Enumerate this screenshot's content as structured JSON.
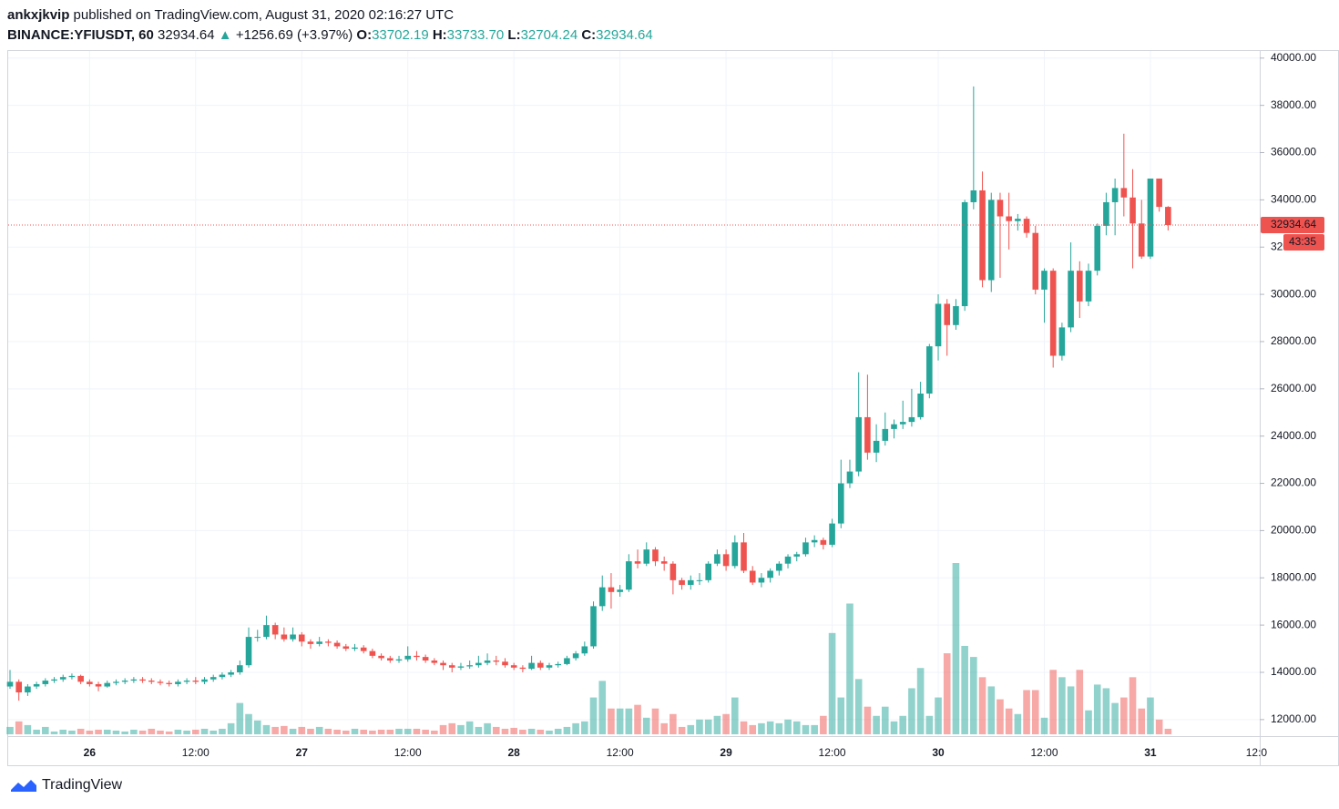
{
  "header": {
    "user": "ankxjkvip",
    "published": "published on TradingView.com, August 31, 2020 02:16:27 UTC",
    "symbol": "BINANCE:YFIUSDT, 60",
    "last": "32934.64",
    "arrow": "▲",
    "change": "+1256.69 (+3.97%)",
    "o_label": "O:",
    "o": "33702.19",
    "h_label": "H:",
    "h": "33733.70",
    "l_label": "L:",
    "l": "32704.24",
    "c_label": "C:",
    "c": "32934.64"
  },
  "footer": {
    "brand": "TradingView"
  },
  "chart_data": {
    "type": "candlestick",
    "up_color": "#26a69a",
    "down_color": "#ef5350",
    "grid": true,
    "countdown": "43:35",
    "xtick_cut": "12:0",
    "ylim": [
      11300,
      40300
    ],
    "yticks": [
      {
        "value": 12000,
        "label": "12000.00"
      },
      {
        "value": 14000,
        "label": "14000.00"
      },
      {
        "value": 16000,
        "label": "16000.00"
      },
      {
        "value": 18000,
        "label": "18000.00"
      },
      {
        "value": 20000,
        "label": "20000.00"
      },
      {
        "value": 22000,
        "label": "22000.00"
      },
      {
        "value": 24000,
        "label": "24000.00"
      },
      {
        "value": 26000,
        "label": "26000.00"
      },
      {
        "value": 28000,
        "label": "28000.00"
      },
      {
        "value": 30000,
        "label": "30000.00"
      },
      {
        "value": 32000,
        "label": "32000.00"
      },
      {
        "value": 34000,
        "label": "34000.00"
      },
      {
        "value": 36000,
        "label": "36000.00"
      },
      {
        "value": 38000,
        "label": "38000.00"
      },
      {
        "value": 40000,
        "label": "40000.00"
      }
    ],
    "categories": [
      null,
      null,
      null,
      null,
      null,
      null,
      null,
      null,
      null,
      "26",
      null,
      null,
      null,
      null,
      null,
      null,
      null,
      null,
      null,
      null,
      null,
      "12:00",
      null,
      null,
      null,
      null,
      null,
      null,
      null,
      null,
      null,
      null,
      null,
      "27",
      null,
      null,
      null,
      null,
      null,
      null,
      null,
      null,
      null,
      null,
      null,
      "12:00",
      null,
      null,
      null,
      null,
      null,
      null,
      null,
      null,
      null,
      null,
      null,
      "28",
      null,
      null,
      null,
      null,
      null,
      null,
      null,
      null,
      null,
      null,
      null,
      "12:00",
      null,
      null,
      null,
      null,
      null,
      null,
      null,
      null,
      null,
      null,
      null,
      "29",
      null,
      null,
      null,
      null,
      null,
      null,
      null,
      null,
      null,
      null,
      null,
      "12:00",
      null,
      null,
      null,
      null,
      null,
      null,
      null,
      null,
      null,
      null,
      null,
      "30",
      null,
      null,
      null,
      null,
      null,
      null,
      null,
      null,
      null,
      null,
      null,
      "12:00",
      null,
      null,
      null,
      null,
      null,
      null,
      null,
      null,
      null,
      null,
      null,
      "31",
      null,
      null
    ],
    "ohlc": [
      [
        13400,
        14100,
        13300,
        13600
      ],
      [
        13600,
        13700,
        12800,
        13150
      ],
      [
        13150,
        13500,
        13000,
        13400
      ],
      [
        13400,
        13600,
        13300,
        13500
      ],
      [
        13500,
        13750,
        13400,
        13650
      ],
      [
        13650,
        13800,
        13550,
        13700
      ],
      [
        13700,
        13900,
        13600,
        13800
      ],
      [
        13800,
        13950,
        13700,
        13850
      ],
      [
        13850,
        13900,
        13500,
        13600
      ],
      [
        13600,
        13700,
        13400,
        13500
      ],
      [
        13500,
        13600,
        13200,
        13400
      ],
      [
        13400,
        13650,
        13350,
        13550
      ],
      [
        13550,
        13700,
        13450,
        13600
      ],
      [
        13600,
        13750,
        13500,
        13650
      ],
      [
        13650,
        13800,
        13550,
        13700
      ],
      [
        13700,
        13800,
        13550,
        13650
      ],
      [
        13650,
        13750,
        13500,
        13600
      ],
      [
        13600,
        13700,
        13450,
        13550
      ],
      [
        13550,
        13650,
        13400,
        13500
      ],
      [
        13500,
        13700,
        13400,
        13600
      ],
      [
        13600,
        13750,
        13500,
        13650
      ],
      [
        13650,
        13800,
        13500,
        13600
      ],
      [
        13600,
        13800,
        13500,
        13700
      ],
      [
        13700,
        13900,
        13600,
        13800
      ],
      [
        13800,
        14000,
        13700,
        13900
      ],
      [
        13900,
        14100,
        13800,
        14000
      ],
      [
        14000,
        14500,
        13900,
        14300
      ],
      [
        14300,
        15900,
        14200,
        15500
      ],
      [
        15500,
        15800,
        15300,
        15500
      ],
      [
        15500,
        16400,
        15400,
        16000
      ],
      [
        16000,
        16100,
        15400,
        15600
      ],
      [
        15600,
        15900,
        15300,
        15400
      ],
      [
        15400,
        15900,
        15300,
        15600
      ],
      [
        15600,
        15700,
        15100,
        15300
      ],
      [
        15300,
        15400,
        15000,
        15200
      ],
      [
        15200,
        15500,
        15100,
        15300
      ],
      [
        15300,
        15400,
        15100,
        15250
      ],
      [
        15250,
        15350,
        15000,
        15100
      ],
      [
        15100,
        15200,
        14900,
        15000
      ],
      [
        15000,
        15200,
        14900,
        15050
      ],
      [
        15050,
        15150,
        14800,
        14900
      ],
      [
        14900,
        15000,
        14600,
        14700
      ],
      [
        14700,
        14800,
        14500,
        14600
      ],
      [
        14600,
        14700,
        14400,
        14500
      ],
      [
        14500,
        14700,
        14400,
        14550
      ],
      [
        14550,
        15100,
        14450,
        14700
      ],
      [
        14700,
        14900,
        14500,
        14650
      ],
      [
        14650,
        14750,
        14400,
        14500
      ],
      [
        14500,
        14600,
        14300,
        14400
      ],
      [
        14400,
        14500,
        14100,
        14300
      ],
      [
        14300,
        14400,
        14000,
        14200
      ],
      [
        14200,
        14400,
        14100,
        14250
      ],
      [
        14250,
        14500,
        14150,
        14300
      ],
      [
        14300,
        14700,
        14200,
        14400
      ],
      [
        14400,
        14800,
        14300,
        14500
      ],
      [
        14500,
        14700,
        14300,
        14450
      ],
      [
        14450,
        14600,
        14200,
        14300
      ],
      [
        14300,
        14400,
        14100,
        14200
      ],
      [
        14200,
        14300,
        14000,
        14150
      ],
      [
        14150,
        14700,
        14100,
        14400
      ],
      [
        14400,
        14500,
        14100,
        14200
      ],
      [
        14200,
        14400,
        14100,
        14300
      ],
      [
        14300,
        14450,
        14200,
        14350
      ],
      [
        14350,
        14700,
        14300,
        14600
      ],
      [
        14600,
        14900,
        14500,
        14800
      ],
      [
        14800,
        15300,
        14700,
        15100
      ],
      [
        15100,
        17000,
        15000,
        16800
      ],
      [
        16800,
        18100,
        16600,
        17600
      ],
      [
        17600,
        18200,
        16700,
        17400
      ],
      [
        17400,
        17700,
        17200,
        17500
      ],
      [
        17500,
        19000,
        17400,
        18700
      ],
      [
        18700,
        19200,
        18400,
        18600
      ],
      [
        18600,
        19500,
        18500,
        19200
      ],
      [
        19200,
        19300,
        18500,
        18700
      ],
      [
        18700,
        18900,
        18300,
        18600
      ],
      [
        18600,
        18700,
        17300,
        17900
      ],
      [
        17900,
        18000,
        17500,
        17700
      ],
      [
        17700,
        18100,
        17500,
        17900
      ],
      [
        17900,
        18200,
        17700,
        17900
      ],
      [
        17900,
        18700,
        17800,
        18600
      ],
      [
        18600,
        19200,
        18500,
        19000
      ],
      [
        19000,
        19200,
        18300,
        18500
      ],
      [
        18500,
        19800,
        18400,
        19500
      ],
      [
        19500,
        19900,
        18200,
        18300
      ],
      [
        18300,
        18500,
        17700,
        17800
      ],
      [
        17800,
        18200,
        17600,
        18000
      ],
      [
        18000,
        18400,
        17800,
        18300
      ],
      [
        18300,
        18700,
        18100,
        18600
      ],
      [
        18600,
        19000,
        18400,
        18900
      ],
      [
        18900,
        19100,
        18700,
        19000
      ],
      [
        19000,
        19700,
        18900,
        19500
      ],
      [
        19500,
        19800,
        19300,
        19600
      ],
      [
        19600,
        19700,
        19200,
        19400
      ],
      [
        19400,
        20500,
        19300,
        20300
      ],
      [
        20300,
        23000,
        20100,
        22000
      ],
      [
        22000,
        23000,
        21800,
        22500
      ],
      [
        22500,
        26700,
        22300,
        24800
      ],
      [
        24800,
        26600,
        23000,
        23300
      ],
      [
        23300,
        24500,
        22900,
        23800
      ],
      [
        23800,
        25000,
        23600,
        24300
      ],
      [
        24300,
        24700,
        23900,
        24500
      ],
      [
        24500,
        25500,
        24300,
        24600
      ],
      [
        24600,
        26000,
        24400,
        24800
      ],
      [
        24800,
        26300,
        24700,
        25800
      ],
      [
        25800,
        27900,
        25600,
        27800
      ],
      [
        27800,
        30000,
        27200,
        29600
      ],
      [
        29600,
        29800,
        27400,
        28700
      ],
      [
        28700,
        29800,
        28500,
        29500
      ],
      [
        29500,
        34000,
        29300,
        33900
      ],
      [
        33900,
        38800,
        33600,
        34400
      ],
      [
        34400,
        35200,
        30300,
        30600
      ],
      [
        30600,
        34300,
        30100,
        34000
      ],
      [
        34000,
        34300,
        30700,
        33300
      ],
      [
        33300,
        34300,
        31900,
        33100
      ],
      [
        33100,
        33400,
        32700,
        33200
      ],
      [
        33200,
        33300,
        32400,
        32600
      ],
      [
        32600,
        32900,
        30000,
        30200
      ],
      [
        30200,
        31100,
        28800,
        31000
      ],
      [
        31000,
        31100,
        26900,
        27400
      ],
      [
        27400,
        28800,
        27200,
        28600
      ],
      [
        28600,
        32200,
        28400,
        31000
      ],
      [
        31000,
        31400,
        29000,
        29700
      ],
      [
        29700,
        31300,
        29500,
        31000
      ],
      [
        31000,
        33000,
        30800,
        32900
      ],
      [
        32900,
        34300,
        32500,
        33900
      ],
      [
        33900,
        34900,
        32500,
        34500
      ],
      [
        34500,
        36800,
        33300,
        34100
      ],
      [
        34100,
        35300,
        31100,
        33000
      ],
      [
        33000,
        34000,
        31500,
        31600
      ],
      [
        31600,
        34900,
        31500,
        34900
      ],
      [
        34900,
        34900,
        33500,
        33702.19
      ],
      [
        33702.19,
        33733.7,
        32704.24,
        32934.64
      ]
    ],
    "volume": [
      8,
      14,
      10,
      5,
      8,
      3,
      5,
      4,
      6,
      4,
      5,
      5,
      4,
      3,
      5,
      4,
      6,
      4,
      3,
      5,
      4,
      5,
      6,
      4,
      6,
      12,
      34,
      22,
      15,
      10,
      8,
      9,
      6,
      8,
      6,
      8,
      6,
      5,
      4,
      6,
      5,
      4,
      5,
      5,
      6,
      6,
      6,
      5,
      4,
      10,
      12,
      10,
      14,
      8,
      12,
      8,
      6,
      7,
      5,
      6,
      5,
      4,
      6,
      8,
      12,
      14,
      40,
      58,
      28,
      28,
      28,
      32,
      18,
      28,
      12,
      22,
      8,
      10,
      16,
      16,
      20,
      22,
      40,
      14,
      10,
      12,
      14,
      12,
      16,
      14,
      10,
      10,
      20,
      110,
      40,
      142,
      60,
      30,
      20,
      30,
      14,
      20,
      50,
      72,
      20,
      40,
      88,
      186,
      96,
      84,
      62,
      52,
      38,
      28,
      22,
      48,
      48,
      18,
      70,
      62,
      52,
      70,
      26,
      54,
      50,
      34,
      40,
      62,
      28,
      40,
      16,
      6
    ]
  }
}
